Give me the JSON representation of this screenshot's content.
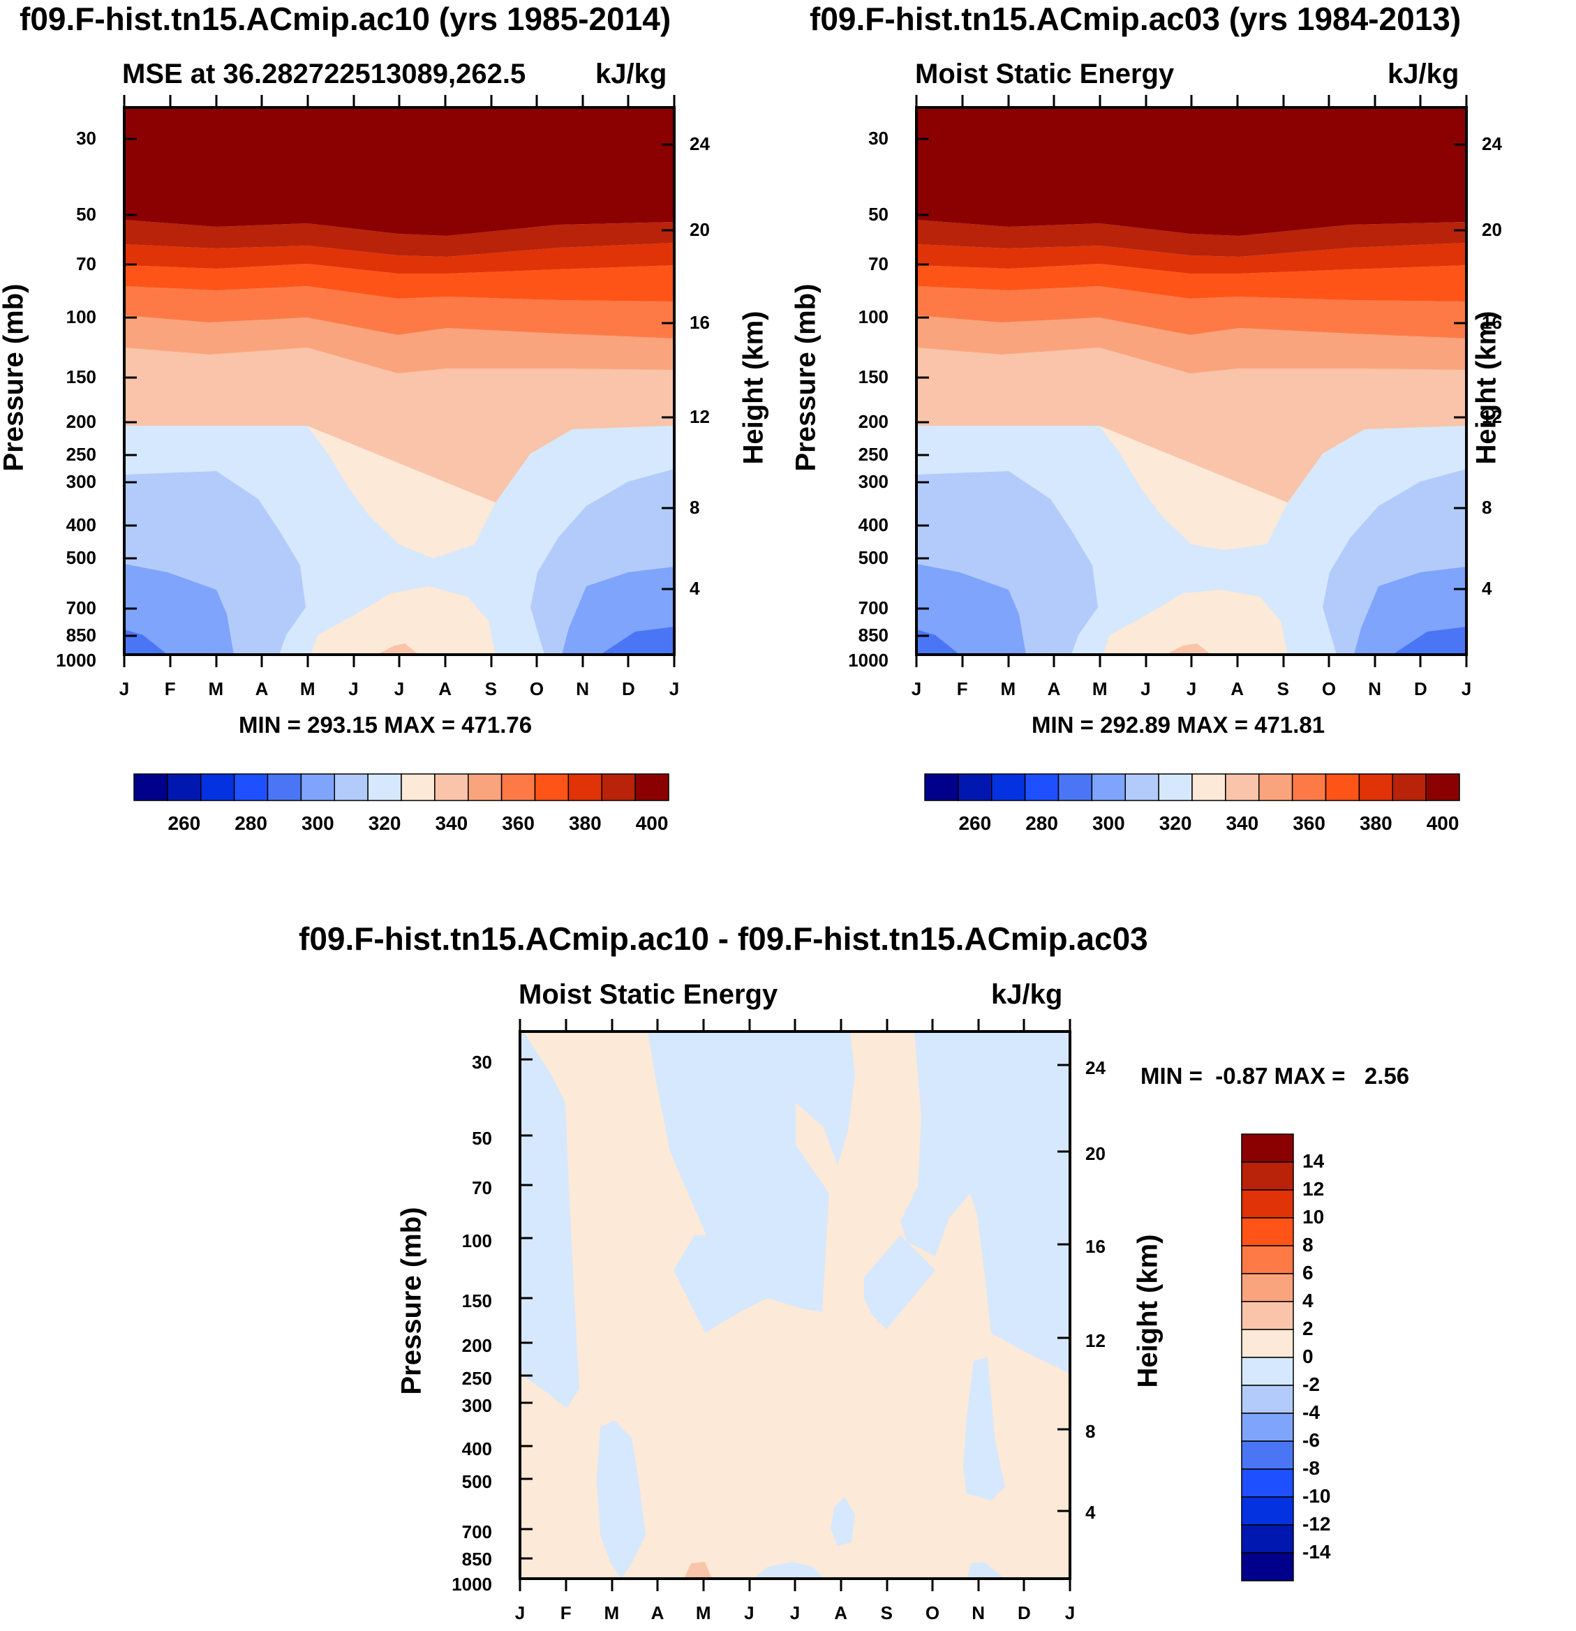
{
  "colors": {
    "palette": [
      "#00008b",
      "#0018b0",
      "#0532e0",
      "#1f50ff",
      "#4a76f5",
      "#7ea4fb",
      "#b3cbfb",
      "#d6e8fd",
      "#fde9d7",
      "#f9c4a9",
      "#f9a47d",
      "#fd7a47",
      "#ff5418",
      "#e03308",
      "#b8230a",
      "#8b0000"
    ]
  },
  "panel_top_left": {
    "title": "f09.F-hist.tn15.ACmip.ac10 (yrs 1985-2014)",
    "left_label": "MSE at 36.282722513089,262.5",
    "right_label": "kJ/kg",
    "ylabel": "Pressure (mb)",
    "ylabel_right": "Height (km)",
    "stats": "MIN = 293.15 MAX = 471.76"
  },
  "panel_top_right": {
    "title": "f09.F-hist.tn15.ACmip.ac03 (yrs 1984-2013)",
    "left_label": "Moist Static Energy",
    "right_label": "kJ/kg",
    "ylabel": "Pressure (mb)",
    "ylabel_right": "Height (km)",
    "stats": "MIN = 292.89 MAX = 471.81"
  },
  "panel_bottom": {
    "title": "f09.F-hist.tn15.ACmip.ac10 - f09.F-hist.tn15.ACmip.ac03",
    "left_label": "Moist Static Energy",
    "right_label": "kJ/kg",
    "ylabel": "Pressure (mb)",
    "ylabel_right": "Height (km)",
    "stats": "MIN =  -0.87 MAX =   2.56"
  },
  "chart_data": [
    {
      "type": "heatmap",
      "title": "f09.F-hist.tn15.ACmip.ac10 (yrs 1985-2014)",
      "subtitle": "MSE at 36.282722513089,262.5",
      "units": "kJ/kg",
      "xlabel": "",
      "ylabel": "Pressure (mb)",
      "ylabel_right": "Height (km)",
      "x_ticks": [
        "J",
        "F",
        "M",
        "A",
        "M",
        "J",
        "J",
        "A",
        "S",
        "O",
        "N",
        "D",
        "J"
      ],
      "y_ticks": [
        30,
        50,
        70,
        100,
        150,
        200,
        250,
        300,
        400,
        500,
        700,
        850,
        1000
      ],
      "y_ticks_right": [
        24,
        20,
        16,
        12,
        8,
        4
      ],
      "ylim": [
        1000,
        25
      ],
      "min": 293.15,
      "max": 471.76,
      "colorbar": {
        "labels": [
          "260",
          "280",
          "300",
          "320",
          "340",
          "360",
          "380",
          "400"
        ],
        "levels": [
          250,
          260,
          270,
          280,
          290,
          300,
          310,
          320,
          330,
          340,
          350,
          360,
          370,
          380,
          390,
          400,
          410
        ]
      }
    },
    {
      "type": "heatmap",
      "title": "f09.F-hist.tn15.ACmip.ac03 (yrs 1984-2013)",
      "subtitle": "Moist Static Energy",
      "units": "kJ/kg",
      "xlabel": "",
      "ylabel": "Pressure (mb)",
      "ylabel_right": "Height (km)",
      "x_ticks": [
        "J",
        "F",
        "M",
        "A",
        "M",
        "J",
        "J",
        "A",
        "S",
        "O",
        "N",
        "D",
        "J"
      ],
      "y_ticks": [
        30,
        50,
        70,
        100,
        150,
        200,
        250,
        300,
        400,
        500,
        700,
        850,
        1000
      ],
      "y_ticks_right": [
        24,
        20,
        16,
        12,
        8,
        4
      ],
      "ylim": [
        1000,
        25
      ],
      "min": 292.89,
      "max": 471.81,
      "colorbar": {
        "labels": [
          "260",
          "280",
          "300",
          "320",
          "340",
          "360",
          "380",
          "400"
        ],
        "levels": [
          250,
          260,
          270,
          280,
          290,
          300,
          310,
          320,
          330,
          340,
          350,
          360,
          370,
          380,
          390,
          400,
          410
        ]
      }
    },
    {
      "type": "heatmap",
      "title": "f09.F-hist.tn15.ACmip.ac10 - f09.F-hist.tn15.ACmip.ac03",
      "subtitle": "Moist Static Energy",
      "units": "kJ/kg",
      "xlabel": "",
      "ylabel": "Pressure (mb)",
      "ylabel_right": "Height (km)",
      "x_ticks": [
        "J",
        "F",
        "M",
        "A",
        "M",
        "J",
        "J",
        "A",
        "S",
        "O",
        "N",
        "D",
        "J"
      ],
      "y_ticks": [
        30,
        50,
        70,
        100,
        150,
        200,
        250,
        300,
        400,
        500,
        700,
        850,
        1000
      ],
      "y_ticks_right": [
        24,
        20,
        16,
        12,
        8,
        4
      ],
      "ylim": [
        1000,
        25
      ],
      "min": -0.87,
      "max": 2.56,
      "colorbar": {
        "labels": [
          "14",
          "12",
          "10",
          "8",
          "6",
          "4",
          "2",
          "0",
          "-2",
          "-4",
          "-6",
          "-8",
          "-10",
          "-12",
          "-14"
        ],
        "levels": [
          -16,
          -14,
          -12,
          -10,
          -8,
          -6,
          -4,
          -2,
          0,
          2,
          4,
          6,
          8,
          10,
          12,
          14,
          16
        ]
      }
    }
  ]
}
